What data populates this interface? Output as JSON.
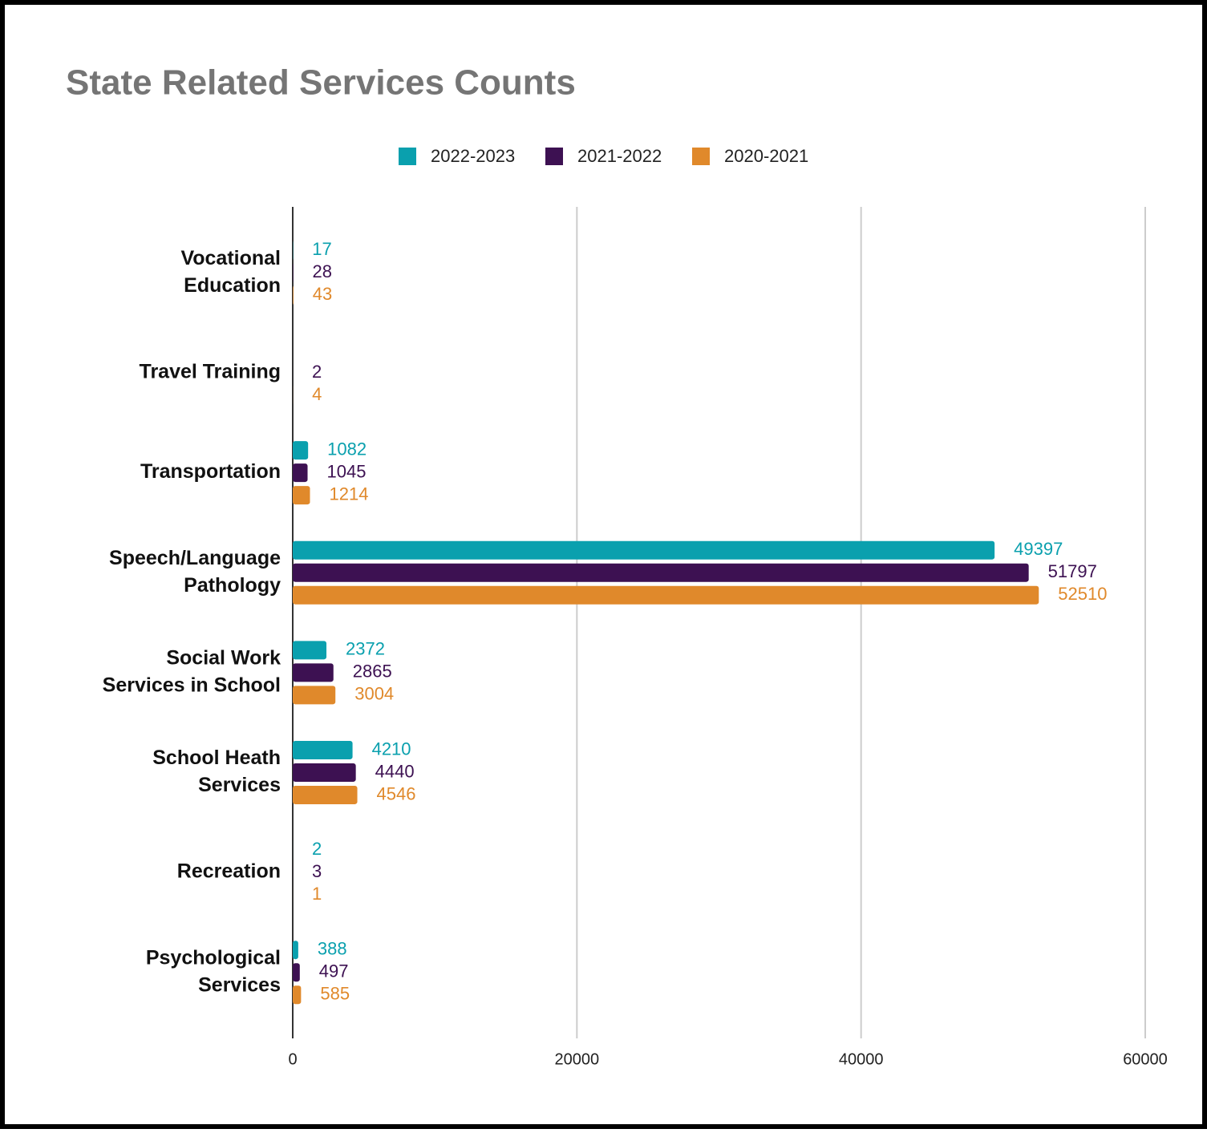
{
  "chart_data": {
    "type": "bar",
    "orientation": "horizontal",
    "title": "State Related Services Counts",
    "categories": [
      [
        "Vocational",
        "Education"
      ],
      [
        "Travel Training"
      ],
      [
        "Transportation"
      ],
      [
        "Speech/Language",
        "Pathology"
      ],
      [
        "Social Work",
        "Services in School"
      ],
      [
        "School Heath",
        "Services"
      ],
      [
        "Recreation"
      ],
      [
        "Psychological",
        "Services"
      ]
    ],
    "series": [
      {
        "name": "2022-2023",
        "color": "#0aa0ae",
        "values": [
          17,
          null,
          1082,
          49397,
          2372,
          4210,
          2,
          388
        ]
      },
      {
        "name": "2021-2022",
        "color": "#3d1152",
        "values": [
          28,
          2,
          1045,
          51797,
          2865,
          4440,
          3,
          497
        ]
      },
      {
        "name": "2020-2021",
        "color": "#e0892b",
        "values": [
          43,
          4,
          1214,
          52510,
          3004,
          4546,
          1,
          585
        ]
      }
    ],
    "xlim": [
      0,
      60000
    ],
    "xticks": [
      0,
      20000,
      40000,
      60000
    ],
    "grid": true,
    "legend": "top"
  }
}
